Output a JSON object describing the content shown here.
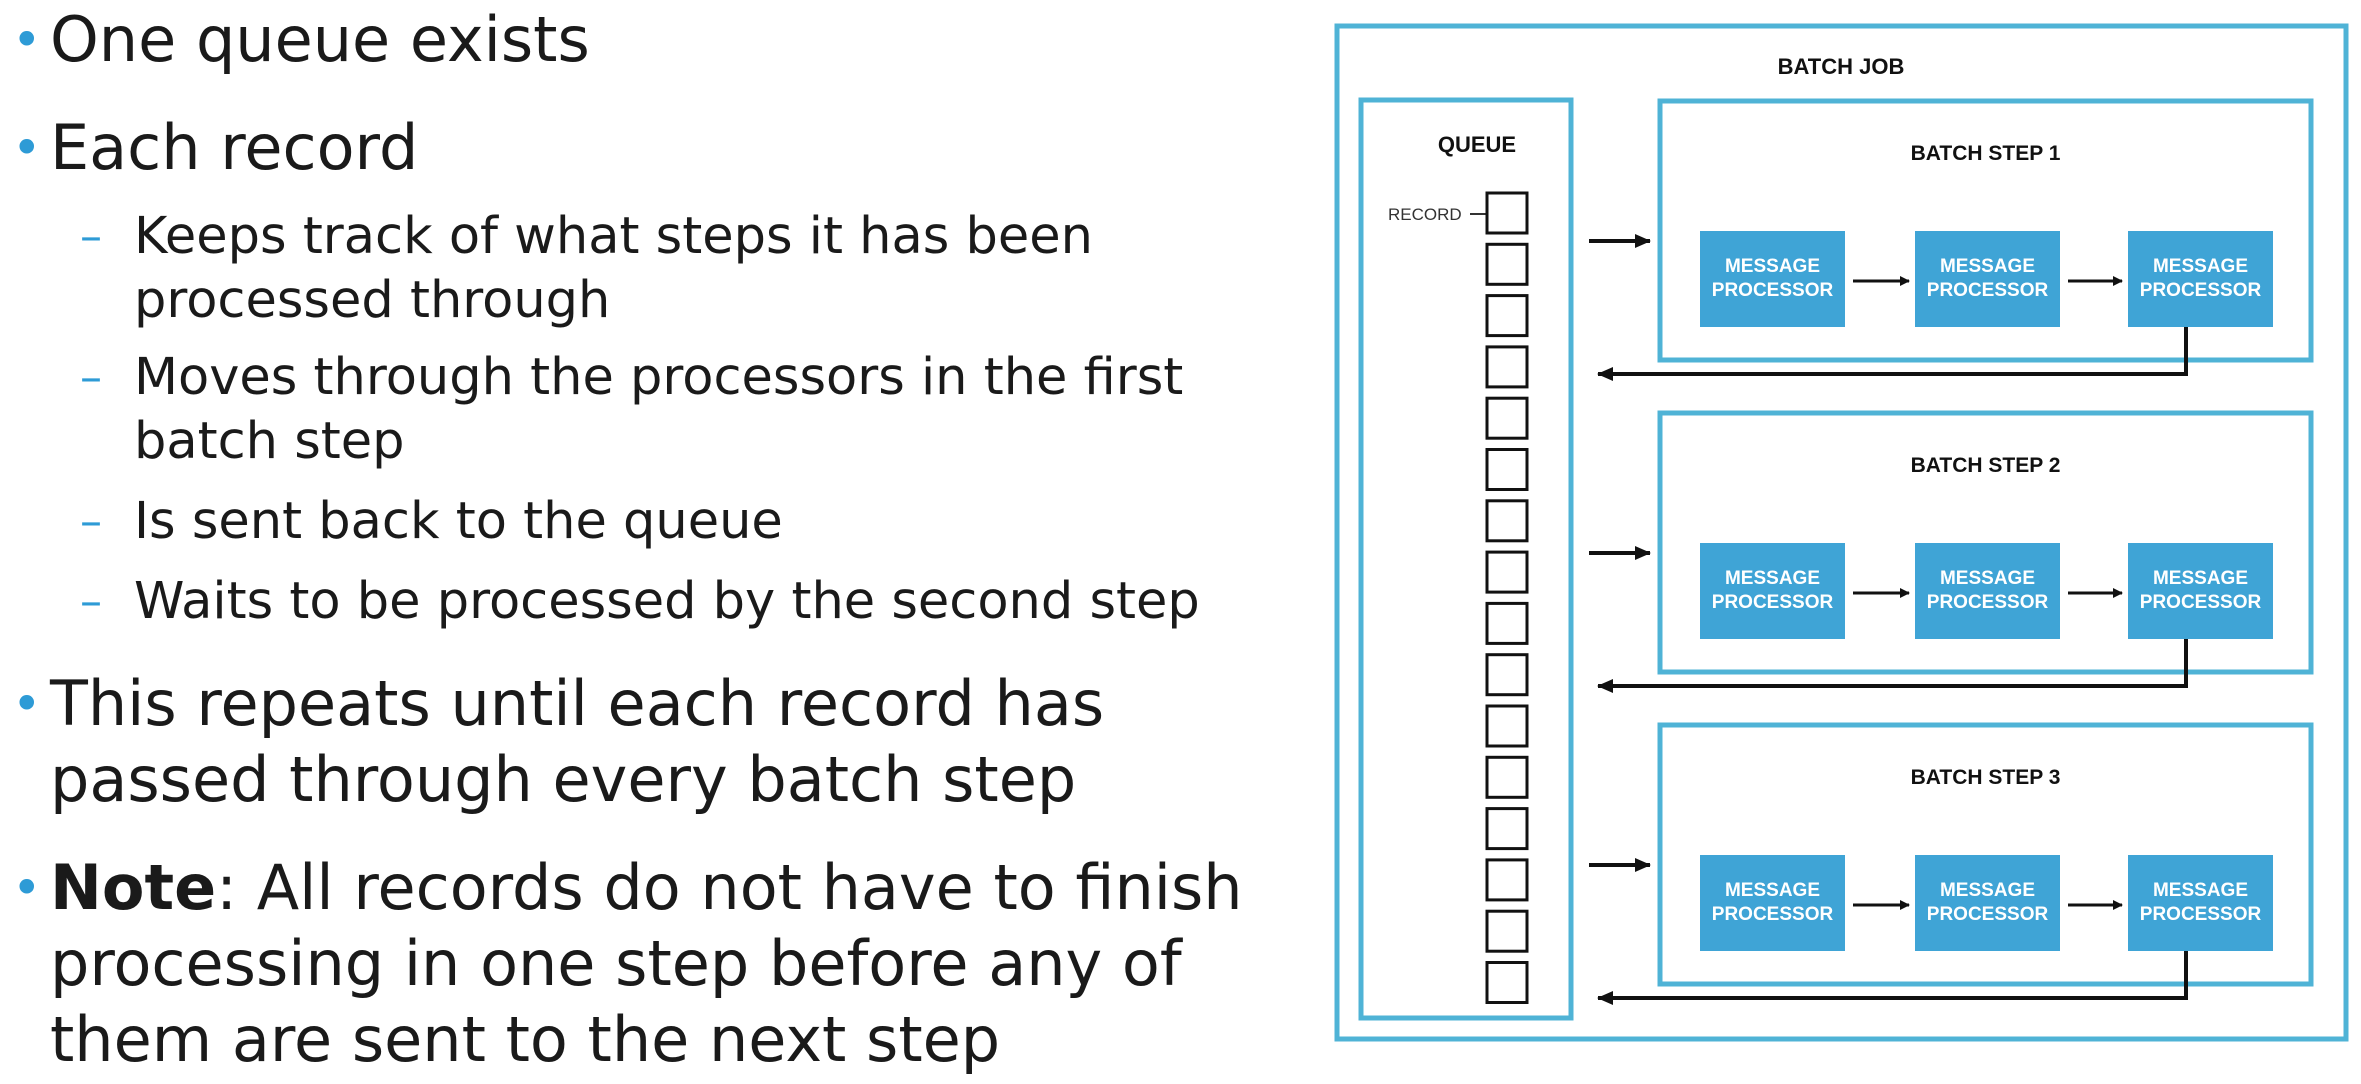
{
  "bullets": {
    "b1": "One queue exists",
    "b2": "Each record",
    "sub1": "Keeps track of what steps it has been processed through",
    "sub2": "Moves through the processors in the first batch step",
    "sub3": "Is sent back to the queue",
    "sub4": "Waits to be processed by the second step",
    "b3": "This repeats until each record has passed through every batch step",
    "b4_bold": "Note",
    "b4_rest": ": All records do not have to finish processing in one step before any of them are sent to the next step"
  },
  "diagram": {
    "title": "BATCH JOB",
    "queue_label": "QUEUE",
    "record_label": "RECORD",
    "record_count": 16,
    "steps": [
      {
        "label": "BATCH STEP 1",
        "processors": [
          [
            "MESSAGE",
            "PROCESSOR"
          ],
          [
            "MESSAGE",
            "PROCESSOR"
          ],
          [
            "MESSAGE",
            "PROCESSOR"
          ]
        ]
      },
      {
        "label": "BATCH STEP 2",
        "processors": [
          [
            "MESSAGE",
            "PROCESSOR"
          ],
          [
            "MESSAGE",
            "PROCESSOR"
          ],
          [
            "MESSAGE",
            "PROCESSOR"
          ]
        ]
      },
      {
        "label": "BATCH STEP 3",
        "processors": [
          [
            "MESSAGE",
            "PROCESSOR"
          ],
          [
            "MESSAGE",
            "PROCESSOR"
          ],
          [
            "MESSAGE",
            "PROCESSOR"
          ]
        ]
      }
    ],
    "colors": {
      "frame": "#4fb3d6",
      "processor": "#3fa4d6",
      "arrow": "#111111"
    }
  }
}
